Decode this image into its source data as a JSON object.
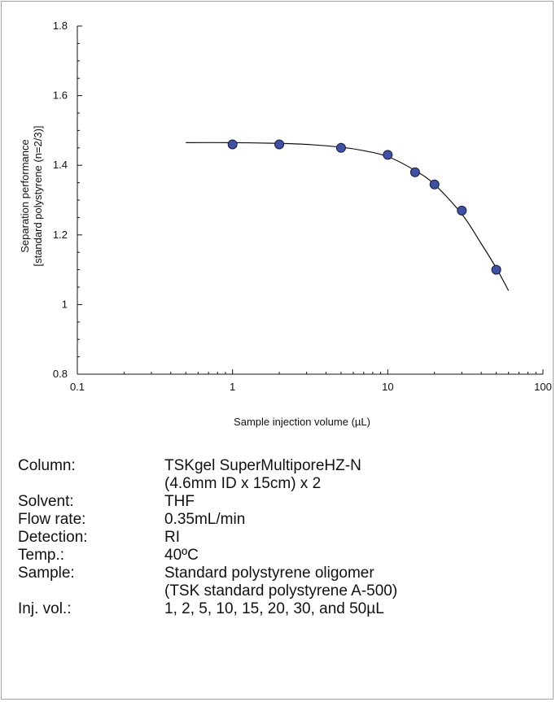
{
  "colors": {
    "frame": "#d9899b",
    "marker_fill": "#3f51a3",
    "marker_stroke": "#1a1a40",
    "curve": "#111111"
  },
  "chart_data": {
    "type": "scatter",
    "xscale": "log",
    "xlim": [
      0.1,
      100
    ],
    "ylim": [
      0.8,
      1.8
    ],
    "xticks": [
      "0.1",
      "1",
      "10",
      "100"
    ],
    "yticks": [
      "0.8",
      "1",
      "1.2",
      "1.4",
      "1.6",
      "1.8"
    ],
    "xlabel": "Sample injection volume (µL)",
    "ylabel": [
      "Separation performance",
      "[standard polystyrene (n=2/3)]"
    ],
    "grid": false,
    "series": [
      {
        "style": "markers",
        "x": [
          1,
          2,
          5,
          10,
          15,
          20,
          30,
          50
        ],
        "y": [
          1.46,
          1.46,
          1.45,
          1.43,
          1.38,
          1.345,
          1.27,
          1.1
        ]
      },
      {
        "style": "fit-curve",
        "x": [
          0.5,
          1,
          2,
          3,
          5,
          7,
          10,
          15,
          20,
          30,
          40,
          50,
          60
        ],
        "y": [
          1.465,
          1.465,
          1.463,
          1.46,
          1.452,
          1.442,
          1.425,
          1.385,
          1.345,
          1.26,
          1.175,
          1.105,
          1.04
        ]
      }
    ]
  },
  "conditions": [
    {
      "label": "Column:",
      "lines": [
        "TSKgel SuperMultiporeHZ-N",
        "(4.6mm ID x 15cm) x 2"
      ]
    },
    {
      "label": "Solvent:",
      "lines": [
        "THF"
      ]
    },
    {
      "label": "Flow rate:",
      "lines": [
        "0.35mL/min"
      ]
    },
    {
      "label": "Detection:",
      "lines": [
        "RI"
      ]
    },
    {
      "label": "Temp.:",
      "lines": [
        "40ºC"
      ]
    },
    {
      "label": "Sample:",
      "lines": [
        "Standard polystyrene oligomer",
        "(TSK standard polystyrene A-500)"
      ]
    },
    {
      "label": "Inj. vol.:",
      "lines": [
        "1, 2, 5, 10, 15, 20, 30, and 50µL"
      ]
    }
  ]
}
